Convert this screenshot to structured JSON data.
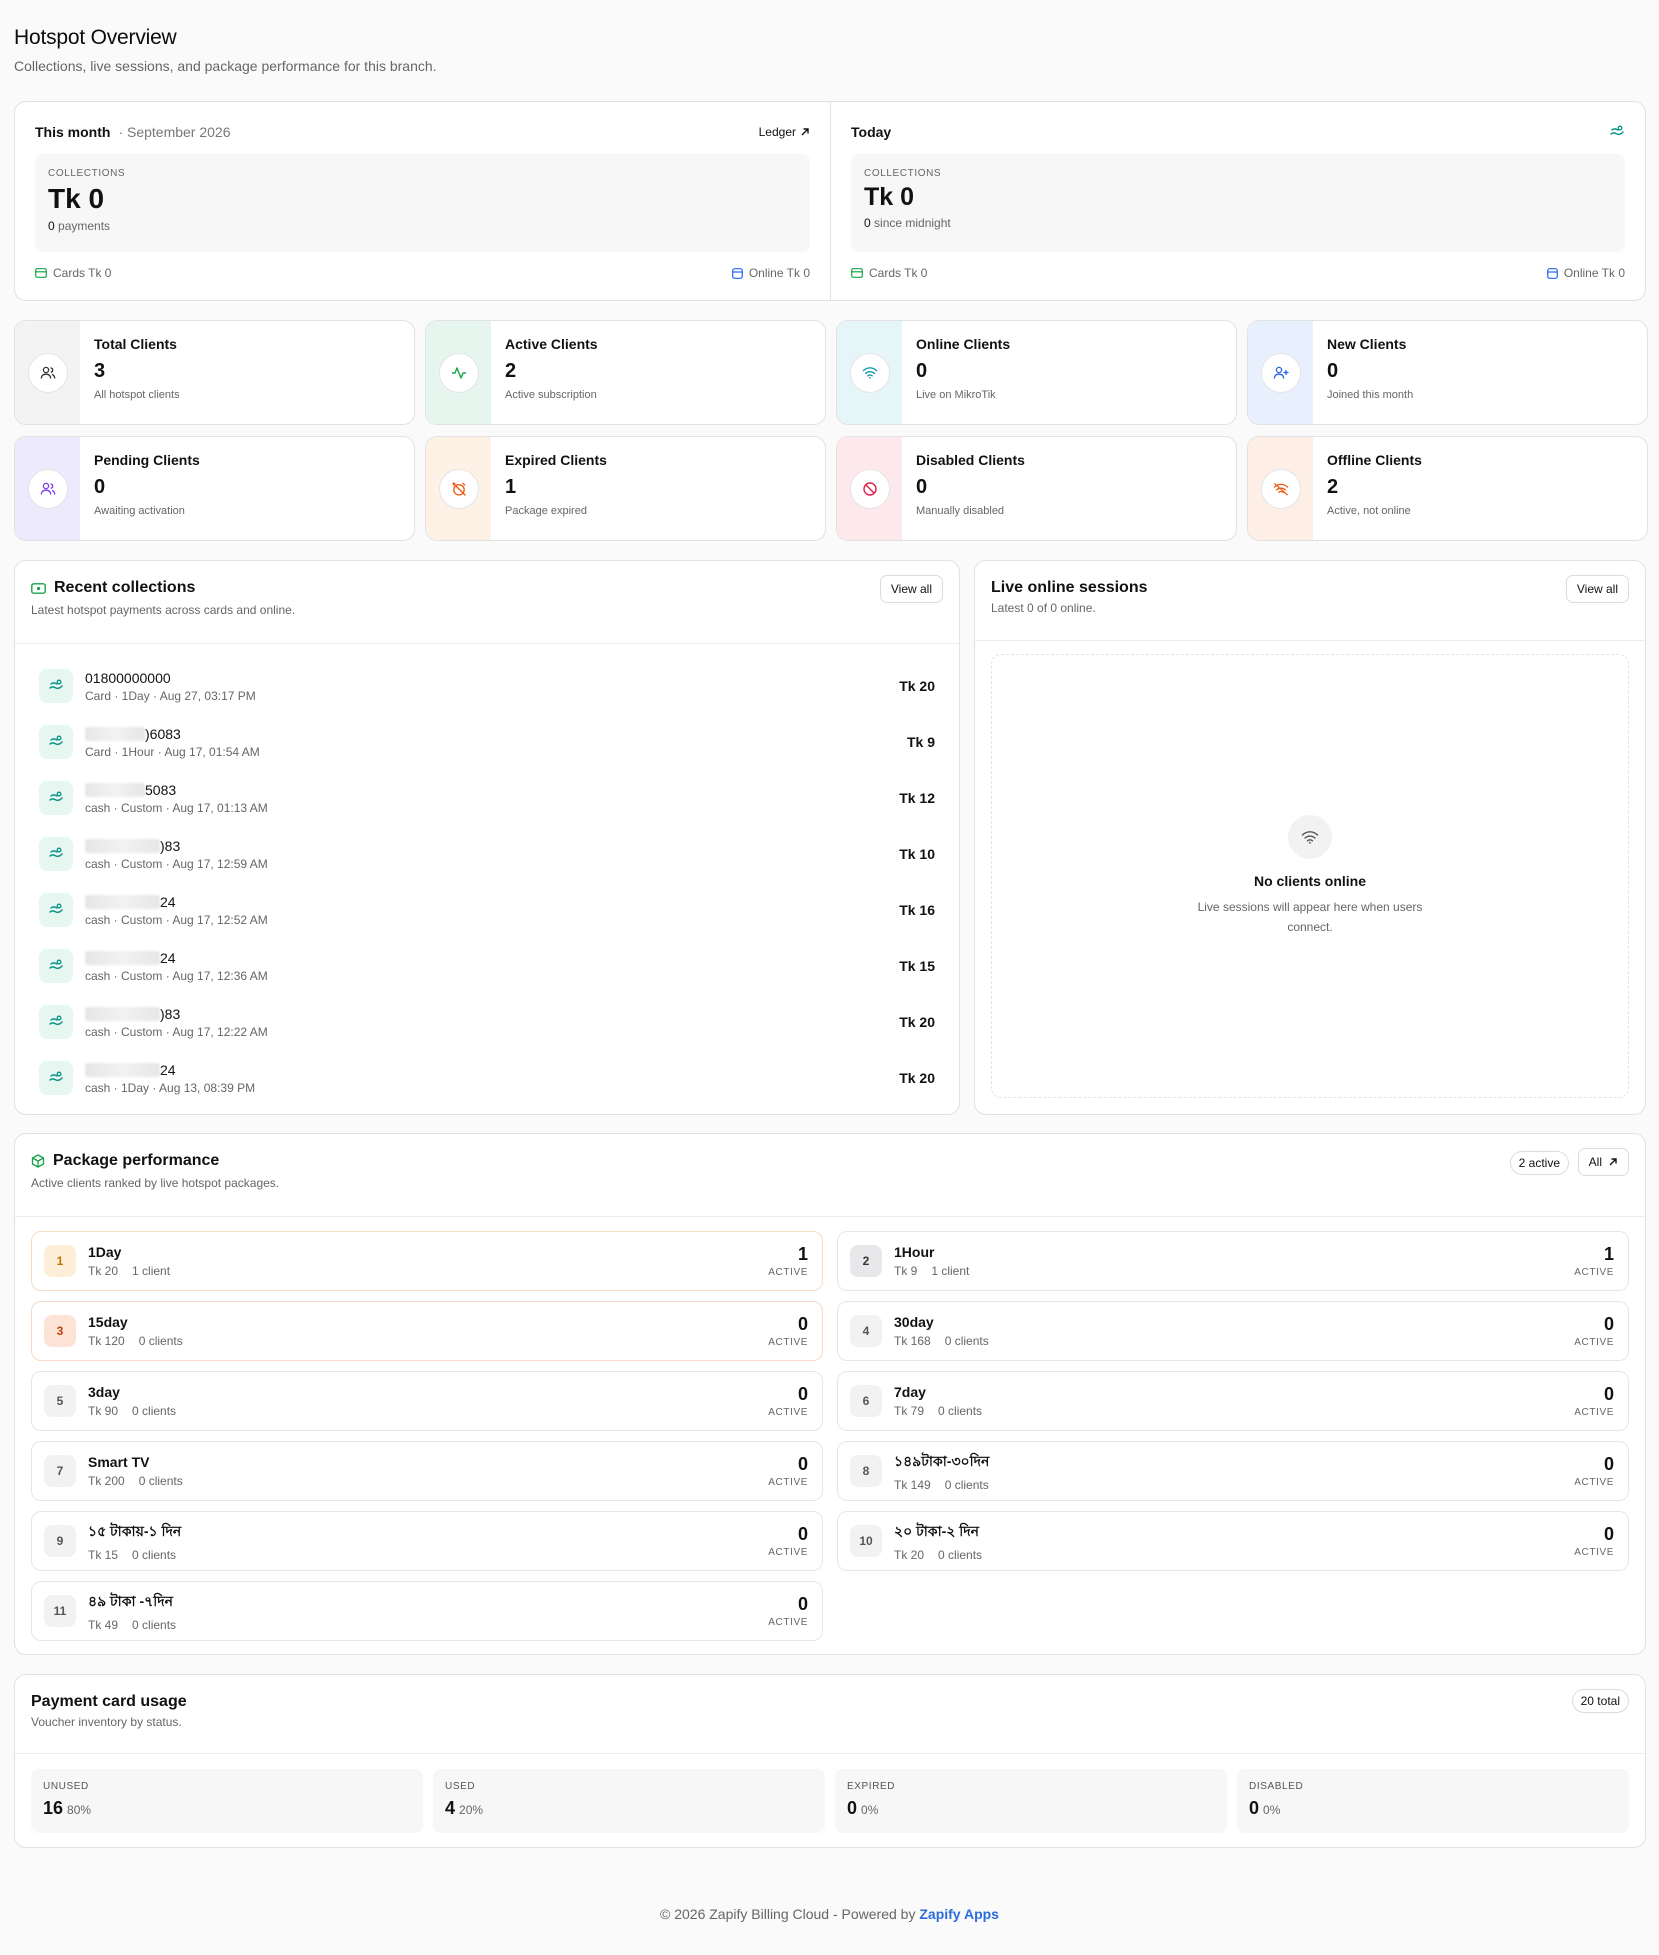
{
  "header": {
    "title": "Hotspot Overview",
    "subtitle": "Collections, live sessions, and package performance for this branch."
  },
  "month": {
    "label": "This month",
    "period": "· September 2026",
    "link": "Ledger",
    "caption": "COLLECTIONS",
    "amount": "Tk 0",
    "count": "0",
    "count_suffix": "payments",
    "cards": "Cards Tk 0",
    "online": "Online Tk 0"
  },
  "today": {
    "label": "Today",
    "caption": "COLLECTIONS",
    "amount": "Tk 0",
    "count": "0",
    "count_suffix": "since midnight",
    "cards": "Cards Tk 0",
    "online": "Online Tk 0"
  },
  "stats": [
    {
      "title": "Total Clients",
      "value": "3",
      "desc": "All hotspot clients",
      "icon": "users-icon",
      "bg": "#f3f3f4",
      "color": "#333333"
    },
    {
      "title": "Active Clients",
      "value": "2",
      "desc": "Active subscription",
      "icon": "activity-icon",
      "bg": "#e6f6ef",
      "color": "#16a34a"
    },
    {
      "title": "Online Clients",
      "value": "0",
      "desc": "Live on MikroTik",
      "icon": "wifi-icon",
      "bg": "#e5f5f8",
      "color": "#0891b2"
    },
    {
      "title": "New Clients",
      "value": "0",
      "desc": "Joined this month",
      "icon": "user-plus-icon",
      "bg": "#e9f0fd",
      "color": "#2563eb"
    },
    {
      "title": "Pending Clients",
      "value": "0",
      "desc": "Awaiting activation",
      "icon": "users-icon",
      "bg": "#eeeafd",
      "color": "#7c3aed"
    },
    {
      "title": "Expired Clients",
      "value": "1",
      "desc": "Package expired",
      "icon": "alarm-off-icon",
      "bg": "#fdf2e5",
      "color": "#ea580c"
    },
    {
      "title": "Disabled Clients",
      "value": "0",
      "desc": "Manually disabled",
      "icon": "ban-icon",
      "bg": "#fde8ec",
      "color": "#e11d48"
    },
    {
      "title": "Offline Clients",
      "value": "2",
      "desc": "Active, not online",
      "icon": "wifi-off-icon",
      "bg": "#fdeee6",
      "color": "#ea580c"
    }
  ],
  "recent": {
    "title": "Recent collections",
    "subtitle": "Latest hotspot payments across cards and online.",
    "view_all": "View all",
    "rows": [
      {
        "name": "01800000000",
        "meta": "Card · 1Day · Aug 27, 03:17 PM",
        "amount": "Tk 20"
      },
      {
        "name": ")6083",
        "meta": "Card · 1Hour · Aug 17, 01:54 AM",
        "amount": "Tk 9"
      },
      {
        "name": "5083",
        "meta": "cash · Custom · Aug 17, 01:13 AM",
        "amount": "Tk 12"
      },
      {
        "name": ")83",
        "meta": "cash · Custom · Aug 17, 12:59 AM",
        "amount": "Tk 10"
      },
      {
        "name": "24",
        "meta": "cash · Custom · Aug 17, 12:52 AM",
        "amount": "Tk 16"
      },
      {
        "name": "24",
        "meta": "cash · Custom · Aug 17, 12:36 AM",
        "amount": "Tk 15"
      },
      {
        "name": ")83",
        "meta": "cash · Custom · Aug 17, 12:22 AM",
        "amount": "Tk 20"
      },
      {
        "name": "24",
        "meta": "cash · 1Day · Aug 13, 08:39 PM",
        "amount": "Tk 20"
      }
    ]
  },
  "live": {
    "title": "Live online sessions",
    "subtitle": "Latest 0 of 0 online.",
    "view_all": "View all",
    "empty_title": "No clients online",
    "empty_desc": "Live sessions will appear here when users connect."
  },
  "packages": {
    "title": "Package performance",
    "subtitle": "Active clients ranked by live hotspot packages.",
    "active_badge": "2 active",
    "all_label": "All",
    "active_label": "ACTIVE",
    "items": [
      {
        "rank": "1",
        "name": "1Day",
        "price": "Tk 20",
        "clients": "1 client",
        "count": "1"
      },
      {
        "rank": "2",
        "name": "1Hour",
        "price": "Tk 9",
        "clients": "1 client",
        "count": "1"
      },
      {
        "rank": "3",
        "name": "15day",
        "price": "Tk 120",
        "clients": "0 clients",
        "count": "0"
      },
      {
        "rank": "4",
        "name": "30day",
        "price": "Tk 168",
        "clients": "0 clients",
        "count": "0"
      },
      {
        "rank": "5",
        "name": "3day",
        "price": "Tk 90",
        "clients": "0 clients",
        "count": "0"
      },
      {
        "rank": "6",
        "name": "7day",
        "price": "Tk 79",
        "clients": "0 clients",
        "count": "0"
      },
      {
        "rank": "7",
        "name": "Smart TV",
        "price": "Tk 200",
        "clients": "0 clients",
        "count": "0"
      },
      {
        "rank": "8",
        "name": "১৪৯টাকা-৩০দিন",
        "price": "Tk 149",
        "clients": "0 clients",
        "count": "0"
      },
      {
        "rank": "9",
        "name": "১৫ টাকায়-১ দিন",
        "price": "Tk 15",
        "clients": "0 clients",
        "count": "0"
      },
      {
        "rank": "10",
        "name": "২০ টাকা-২ দিন",
        "price": "Tk 20",
        "clients": "0 clients",
        "count": "0"
      },
      {
        "rank": "11",
        "name": "৪৯ টাকা -৭দিন",
        "price": "Tk 49",
        "clients": "0 clients",
        "count": "0"
      }
    ]
  },
  "payment": {
    "title": "Payment card usage",
    "subtitle": "Voucher inventory by status.",
    "total": "20 total",
    "boxes": [
      {
        "caption": "UNUSED",
        "value": "16",
        "pct": "80%"
      },
      {
        "caption": "USED",
        "value": "4",
        "pct": "20%"
      },
      {
        "caption": "EXPIRED",
        "value": "0",
        "pct": "0%"
      },
      {
        "caption": "DISABLED",
        "value": "0",
        "pct": "0%"
      }
    ]
  },
  "footer": {
    "text": "© 2026 Zapify Billing Cloud - Powered by",
    "brand": "Zapify Apps"
  }
}
